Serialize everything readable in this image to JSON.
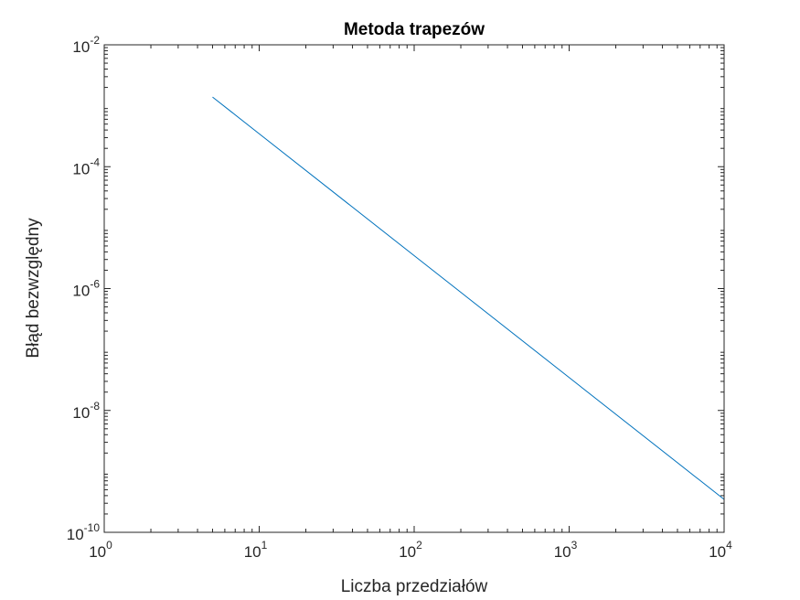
{
  "chart_data": {
    "type": "line",
    "title": "Metoda trapezów",
    "xlabel": "Liczba przedziałów",
    "ylabel": "Błąd bezwzględny",
    "xscale": "log",
    "yscale": "log",
    "xlim": [
      1,
      10000
    ],
    "ylim": [
      1e-10,
      0.01
    ],
    "grid": false,
    "x_ticks": [
      {
        "base": "10",
        "exp": "0",
        "value": 1
      },
      {
        "base": "10",
        "exp": "1",
        "value": 10
      },
      {
        "base": "10",
        "exp": "2",
        "value": 100
      },
      {
        "base": "10",
        "exp": "3",
        "value": 1000
      },
      {
        "base": "10",
        "exp": "4",
        "value": 10000
      }
    ],
    "y_ticks": [
      {
        "base": "10",
        "exp": "-10",
        "value": 1e-10
      },
      {
        "base": "10",
        "exp": "-8",
        "value": 1e-08
      },
      {
        "base": "10",
        "exp": "-6",
        "value": 1e-06
      },
      {
        "base": "10",
        "exp": "-4",
        "value": 0.0001
      },
      {
        "base": "10",
        "exp": "-2",
        "value": 0.01
      }
    ],
    "series": [
      {
        "color": "#0072BD",
        "x": [
          5,
          10,
          100,
          1000,
          10000
        ],
        "y": [
          0.00139,
          0.000347,
          3.47e-06,
          3.47e-08,
          3.47e-10
        ]
      }
    ]
  }
}
